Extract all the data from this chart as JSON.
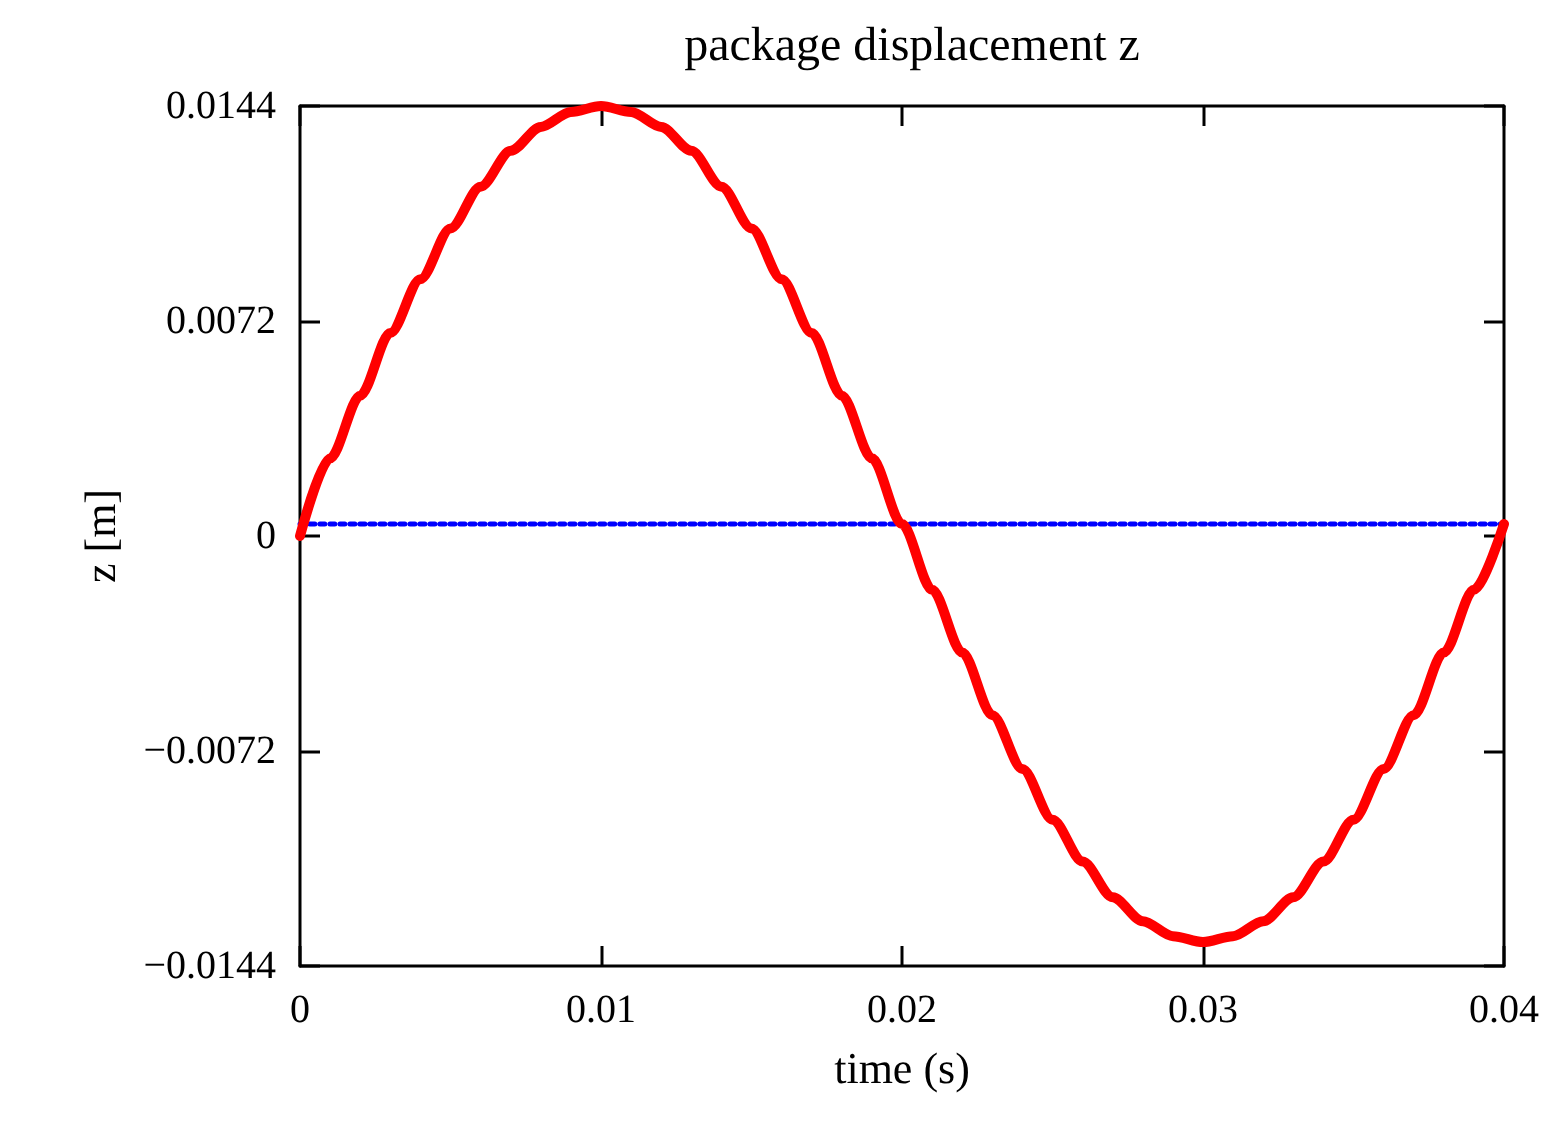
{
  "chart_data": {
    "type": "line",
    "title": "package displacement z",
    "xlabel": "time (s)",
    "ylabel": "z [m]",
    "xlim": [
      0,
      0.04
    ],
    "xticks": [
      0,
      0.01,
      0.02,
      0.03,
      0.04
    ],
    "ylim": [
      -0.0144,
      0.0144
    ],
    "yticks": [
      {
        "value": -0.0144,
        "label": "−0.0144"
      },
      {
        "value": -0.0072,
        "label": "−0.0072"
      },
      0,
      0.0072,
      0.0144
    ],
    "marker": "none",
    "series": [
      {
        "color": "#ff0000",
        "line_style": "solid",
        "x": [
          0,
          0.001,
          0.002,
          0.003,
          0.004,
          0.005,
          0.006,
          0.007,
          0.008,
          0.009,
          0.01,
          0.011,
          0.012,
          0.013,
          0.014,
          0.015,
          0.016,
          0.017,
          0.018,
          0.019,
          0.02,
          0.021,
          0.022,
          0.023,
          0.024,
          0.025,
          0.026,
          0.027,
          0.028,
          0.029,
          0.03,
          0.031,
          0.032,
          0.033,
          0.034,
          0.035,
          0.036,
          0.037,
          0.038,
          0.039,
          0.04
        ],
        "values": [
          0,
          0.0026,
          0.0047,
          0.0068,
          0.0086,
          0.0103,
          0.0117,
          0.0129,
          0.0137,
          0.0142,
          0.0144,
          0.0142,
          0.0137,
          0.0129,
          0.0117,
          0.0103,
          0.0086,
          0.0068,
          0.0047,
          0.0026,
          0.0004,
          -0.0018,
          -0.0039,
          -0.006,
          -0.0078,
          -0.0095,
          -0.0109,
          -0.0121,
          -0.0129,
          -0.0134,
          -0.0136,
          -0.0134,
          -0.0129,
          -0.0121,
          -0.0109,
          -0.0095,
          -0.0078,
          -0.006,
          -0.0039,
          -0.0018,
          0.0004
        ]
      },
      {
        "color": "#0000ff",
        "line_style": "dotted",
        "x": [
          0,
          0.04
        ],
        "values": [
          0.0004,
          0.0004
        ]
      }
    ]
  }
}
